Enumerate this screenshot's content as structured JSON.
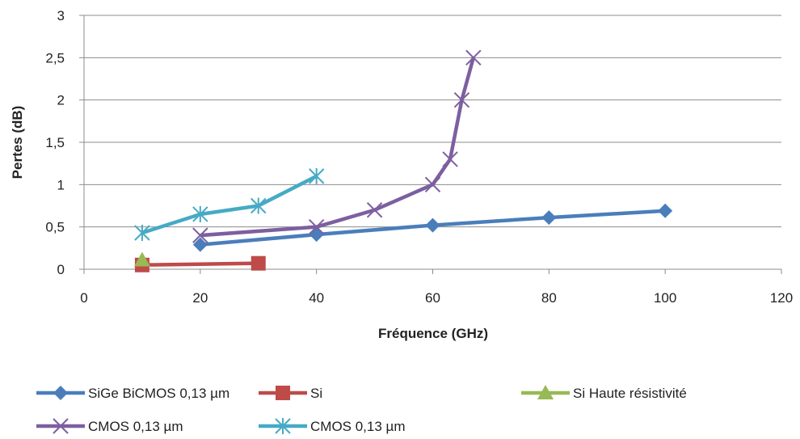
{
  "chart_data": {
    "type": "line",
    "title": "",
    "xlabel": "Fréquence (GHz)",
    "ylabel": "Pertes (dB)",
    "xlim": [
      0,
      120
    ],
    "ylim": [
      0,
      3
    ],
    "xticks": [
      0,
      20,
      40,
      60,
      80,
      100,
      120
    ],
    "yticks": [
      0,
      0.5,
      1,
      1.5,
      2,
      2.5,
      3
    ],
    "xtick_labels": [
      "0",
      "20",
      "40",
      "60",
      "80",
      "100",
      "120"
    ],
    "ytick_labels": [
      "0",
      "0,5",
      "1",
      "1,5",
      "2",
      "2,5",
      "3"
    ],
    "grid": "horizontal",
    "legend_position": "bottom",
    "series": [
      {
        "name": "SiGe BiCMOS 0,13 µm",
        "color": "#4a7ebb",
        "marker": "diamond",
        "x": [
          20,
          40,
          60,
          80,
          100
        ],
        "y": [
          0.29,
          0.41,
          0.52,
          0.61,
          0.69
        ]
      },
      {
        "name": "Si",
        "color": "#be4b48",
        "marker": "square",
        "x": [
          10,
          30
        ],
        "y": [
          0.05,
          0.07
        ]
      },
      {
        "name": "Si Haute résistivité",
        "color": "#98b954",
        "marker": "triangle",
        "x": [
          10
        ],
        "y": [
          0.11
        ]
      },
      {
        "name": "CMOS 0,13 µm",
        "color": "#7d5fa0",
        "marker": "x",
        "x": [
          20,
          40,
          50,
          60,
          63,
          65,
          67
        ],
        "y": [
          0.4,
          0.5,
          0.7,
          1.0,
          1.3,
          2.0,
          2.5
        ]
      },
      {
        "name": "CMOS 0,13 µm",
        "color": "#46aac5",
        "marker": "star",
        "x": [
          10,
          20,
          30,
          40
        ],
        "y": [
          0.43,
          0.65,
          0.75,
          1.1
        ]
      }
    ]
  }
}
